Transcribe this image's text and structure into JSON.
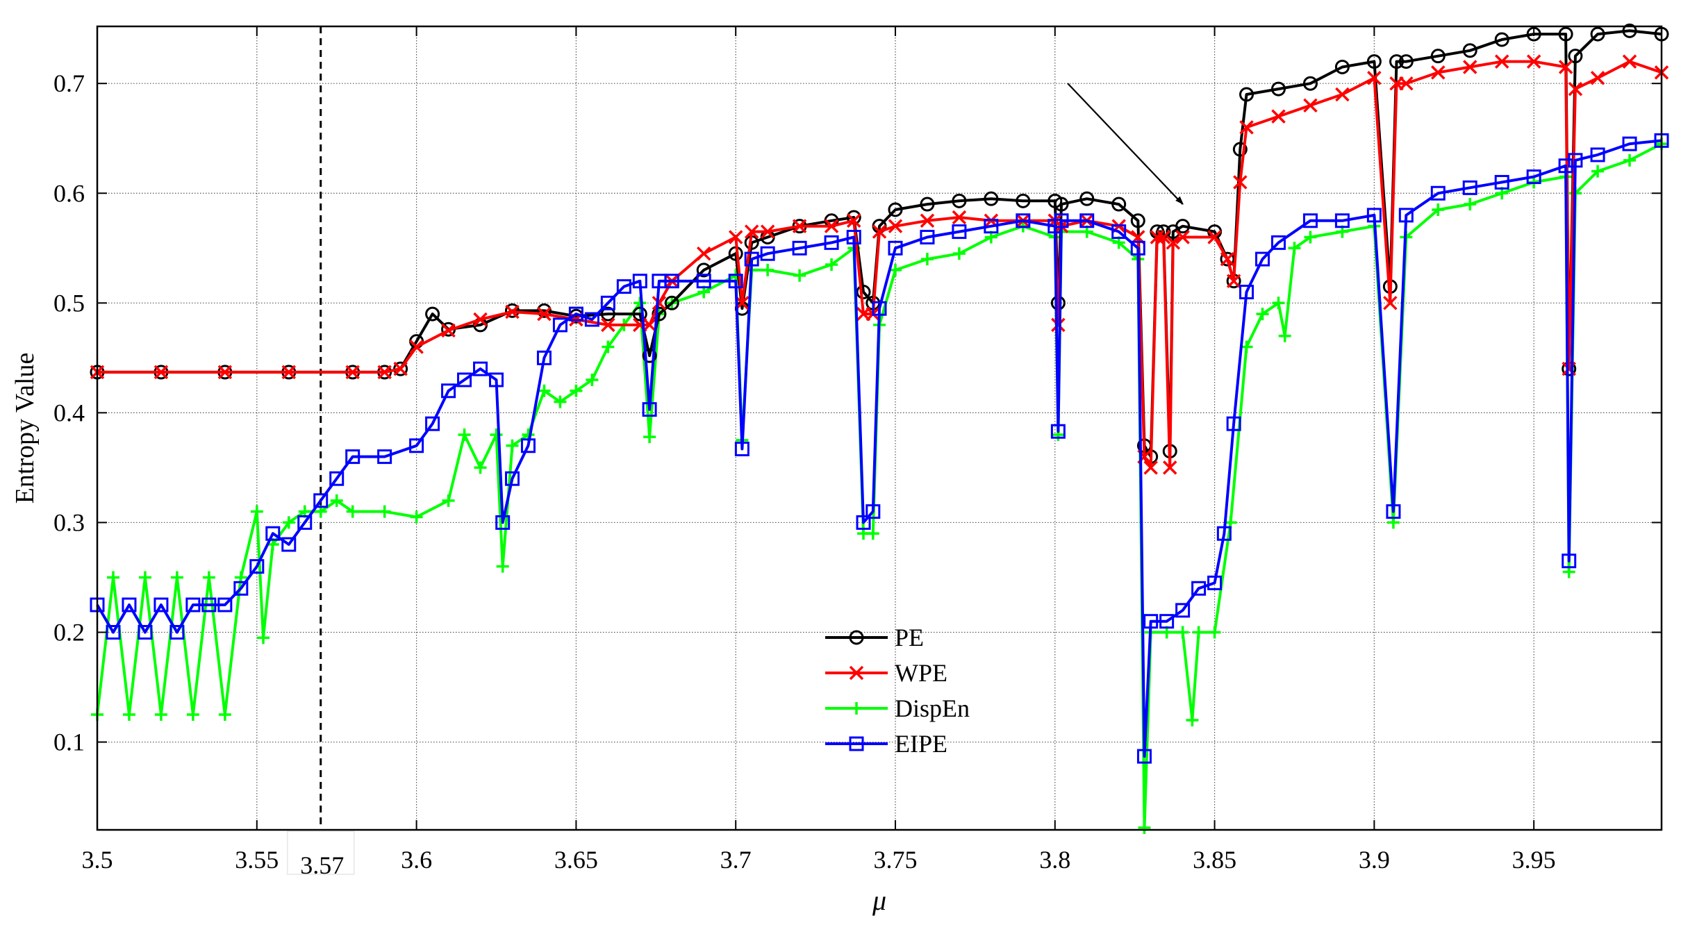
{
  "chart_data": {
    "type": "line",
    "xlabel": "μ",
    "ylabel": "Entropy Value",
    "xlim": [
      3.5,
      3.99
    ],
    "ylim": [
      0.02,
      0.752
    ],
    "x_ticks": [
      3.5,
      3.55,
      3.6,
      3.65,
      3.7,
      3.75,
      3.8,
      3.85,
      3.9,
      3.95
    ],
    "x_tick_labels": [
      "3.5",
      "3.55",
      "3.6",
      "3.65",
      "3.7",
      "3.75",
      "3.8",
      "3.85",
      "3.9",
      "3.95"
    ],
    "y_ticks": [
      0.1,
      0.2,
      0.3,
      0.4,
      0.5,
      0.6,
      0.7
    ],
    "y_tick_labels": [
      "0.1",
      "0.2",
      "0.3",
      "0.4",
      "0.5",
      "0.6",
      "0.7"
    ],
    "grid": true,
    "legend_position": "lower-center",
    "annotations": [
      {
        "type": "vline",
        "style": "dashed",
        "x": 3.57,
        "label": "3.57"
      },
      {
        "type": "arrow",
        "from": [
          3.804,
          0.7
        ],
        "to": [
          3.84,
          0.59
        ]
      }
    ],
    "series": [
      {
        "name": "PE",
        "color": "#000000",
        "marker": "circle",
        "x": [
          3.5,
          3.52,
          3.54,
          3.56,
          3.58,
          3.59,
          3.595,
          3.6,
          3.605,
          3.61,
          3.62,
          3.63,
          3.64,
          3.65,
          3.66,
          3.67,
          3.673,
          3.676,
          3.68,
          3.69,
          3.7,
          3.702,
          3.705,
          3.71,
          3.72,
          3.73,
          3.737,
          3.74,
          3.743,
          3.745,
          3.75,
          3.76,
          3.77,
          3.78,
          3.79,
          3.8,
          3.801,
          3.802,
          3.81,
          3.82,
          3.826,
          3.828,
          3.83,
          3.832,
          3.834,
          3.836,
          3.837,
          3.84,
          3.85,
          3.854,
          3.856,
          3.858,
          3.86,
          3.87,
          3.88,
          3.89,
          3.9,
          3.905,
          3.907,
          3.91,
          3.92,
          3.93,
          3.94,
          3.95,
          3.96,
          3.961,
          3.963,
          3.97,
          3.98,
          3.99
        ],
        "y": [
          0.437,
          0.437,
          0.437,
          0.437,
          0.437,
          0.437,
          0.44,
          0.465,
          0.49,
          0.476,
          0.48,
          0.493,
          0.493,
          0.488,
          0.49,
          0.49,
          0.452,
          0.49,
          0.5,
          0.53,
          0.545,
          0.495,
          0.555,
          0.56,
          0.57,
          0.575,
          0.578,
          0.51,
          0.5,
          0.57,
          0.585,
          0.59,
          0.593,
          0.595,
          0.593,
          0.593,
          0.5,
          0.59,
          0.595,
          0.59,
          0.575,
          0.37,
          0.36,
          0.565,
          0.565,
          0.365,
          0.565,
          0.57,
          0.565,
          0.54,
          0.52,
          0.64,
          0.69,
          0.695,
          0.7,
          0.715,
          0.72,
          0.515,
          0.72,
          0.72,
          0.725,
          0.73,
          0.74,
          0.745,
          0.745,
          0.44,
          0.725,
          0.745,
          0.748,
          0.745
        ]
      },
      {
        "name": "WPE",
        "color": "#ff0000",
        "marker": "x",
        "x": [
          3.5,
          3.52,
          3.54,
          3.56,
          3.58,
          3.59,
          3.595,
          3.6,
          3.61,
          3.62,
          3.63,
          3.64,
          3.65,
          3.66,
          3.67,
          3.673,
          3.676,
          3.68,
          3.69,
          3.7,
          3.702,
          3.705,
          3.71,
          3.72,
          3.73,
          3.737,
          3.74,
          3.743,
          3.745,
          3.75,
          3.76,
          3.77,
          3.78,
          3.79,
          3.8,
          3.801,
          3.802,
          3.81,
          3.82,
          3.826,
          3.828,
          3.83,
          3.832,
          3.834,
          3.836,
          3.837,
          3.84,
          3.85,
          3.854,
          3.856,
          3.858,
          3.86,
          3.87,
          3.88,
          3.89,
          3.9,
          3.905,
          3.907,
          3.91,
          3.92,
          3.93,
          3.94,
          3.95,
          3.96,
          3.961,
          3.963,
          3.97,
          3.98,
          3.99
        ],
        "y": [
          0.437,
          0.437,
          0.437,
          0.437,
          0.437,
          0.437,
          0.44,
          0.46,
          0.475,
          0.485,
          0.492,
          0.49,
          0.485,
          0.48,
          0.48,
          0.48,
          0.5,
          0.52,
          0.545,
          0.56,
          0.5,
          0.565,
          0.565,
          0.57,
          0.57,
          0.575,
          0.49,
          0.49,
          0.565,
          0.57,
          0.575,
          0.578,
          0.575,
          0.575,
          0.575,
          0.48,
          0.57,
          0.575,
          0.57,
          0.56,
          0.36,
          0.35,
          0.56,
          0.56,
          0.35,
          0.555,
          0.56,
          0.56,
          0.54,
          0.52,
          0.61,
          0.66,
          0.67,
          0.68,
          0.69,
          0.705,
          0.5,
          0.7,
          0.7,
          0.71,
          0.715,
          0.72,
          0.72,
          0.715,
          0.44,
          0.695,
          0.705,
          0.72,
          0.71
        ]
      },
      {
        "name": "DispEn",
        "color": "#00ff00",
        "marker": "plus",
        "x": [
          3.5,
          3.505,
          3.51,
          3.515,
          3.52,
          3.525,
          3.53,
          3.535,
          3.54,
          3.545,
          3.55,
          3.552,
          3.555,
          3.56,
          3.565,
          3.57,
          3.575,
          3.58,
          3.59,
          3.6,
          3.61,
          3.615,
          3.62,
          3.625,
          3.627,
          3.63,
          3.635,
          3.64,
          3.645,
          3.65,
          3.655,
          3.66,
          3.665,
          3.67,
          3.673,
          3.676,
          3.68,
          3.69,
          3.7,
          3.702,
          3.705,
          3.71,
          3.72,
          3.73,
          3.737,
          3.74,
          3.743,
          3.745,
          3.75,
          3.76,
          3.77,
          3.78,
          3.79,
          3.8,
          3.801,
          3.802,
          3.81,
          3.82,
          3.826,
          3.828,
          3.83,
          3.835,
          3.84,
          3.843,
          3.845,
          3.85,
          3.855,
          3.86,
          3.865,
          3.87,
          3.872,
          3.875,
          3.88,
          3.89,
          3.9,
          3.906,
          3.91,
          3.92,
          3.93,
          3.94,
          3.95,
          3.96,
          3.961,
          3.963,
          3.97,
          3.98,
          3.99
        ],
        "y": [
          0.125,
          0.25,
          0.125,
          0.25,
          0.125,
          0.25,
          0.125,
          0.25,
          0.125,
          0.25,
          0.31,
          0.195,
          0.28,
          0.3,
          0.31,
          0.31,
          0.32,
          0.31,
          0.31,
          0.305,
          0.32,
          0.38,
          0.35,
          0.38,
          0.26,
          0.37,
          0.38,
          0.42,
          0.41,
          0.42,
          0.43,
          0.46,
          0.48,
          0.5,
          0.378,
          0.49,
          0.5,
          0.51,
          0.525,
          0.375,
          0.53,
          0.53,
          0.525,
          0.535,
          0.55,
          0.29,
          0.29,
          0.48,
          0.53,
          0.54,
          0.545,
          0.56,
          0.57,
          0.56,
          0.38,
          0.565,
          0.565,
          0.555,
          0.54,
          0.022,
          0.2,
          0.2,
          0.2,
          0.12,
          0.2,
          0.2,
          0.3,
          0.46,
          0.49,
          0.5,
          0.47,
          0.55,
          0.56,
          0.565,
          0.57,
          0.3,
          0.56,
          0.585,
          0.59,
          0.6,
          0.61,
          0.615,
          0.255,
          0.6,
          0.62,
          0.63,
          0.645
        ]
      },
      {
        "name": "EIPE",
        "color": "#0000ff",
        "marker": "square",
        "x": [
          3.5,
          3.505,
          3.51,
          3.515,
          3.52,
          3.525,
          3.53,
          3.535,
          3.54,
          3.545,
          3.55,
          3.555,
          3.56,
          3.565,
          3.57,
          3.575,
          3.58,
          3.59,
          3.6,
          3.605,
          3.61,
          3.615,
          3.62,
          3.625,
          3.627,
          3.63,
          3.635,
          3.64,
          3.645,
          3.65,
          3.655,
          3.66,
          3.665,
          3.67,
          3.673,
          3.676,
          3.68,
          3.69,
          3.7,
          3.702,
          3.705,
          3.71,
          3.72,
          3.73,
          3.737,
          3.74,
          3.743,
          3.745,
          3.75,
          3.76,
          3.77,
          3.78,
          3.79,
          3.8,
          3.801,
          3.802,
          3.81,
          3.82,
          3.826,
          3.828,
          3.83,
          3.835,
          3.84,
          3.845,
          3.85,
          3.853,
          3.856,
          3.86,
          3.865,
          3.87,
          3.88,
          3.89,
          3.9,
          3.906,
          3.91,
          3.92,
          3.93,
          3.94,
          3.95,
          3.96,
          3.961,
          3.963,
          3.97,
          3.98,
          3.99
        ],
        "y": [
          0.225,
          0.2,
          0.225,
          0.2,
          0.225,
          0.2,
          0.225,
          0.225,
          0.225,
          0.24,
          0.26,
          0.29,
          0.28,
          0.3,
          0.32,
          0.34,
          0.36,
          0.36,
          0.37,
          0.39,
          0.42,
          0.43,
          0.44,
          0.43,
          0.3,
          0.34,
          0.37,
          0.45,
          0.48,
          0.49,
          0.485,
          0.5,
          0.515,
          0.52,
          0.403,
          0.52,
          0.52,
          0.52,
          0.52,
          0.367,
          0.54,
          0.545,
          0.55,
          0.555,
          0.56,
          0.3,
          0.31,
          0.495,
          0.55,
          0.56,
          0.565,
          0.57,
          0.575,
          0.57,
          0.383,
          0.575,
          0.575,
          0.565,
          0.55,
          0.087,
          0.21,
          0.21,
          0.22,
          0.24,
          0.245,
          0.29,
          0.39,
          0.51,
          0.54,
          0.555,
          0.575,
          0.575,
          0.58,
          0.31,
          0.58,
          0.6,
          0.605,
          0.61,
          0.615,
          0.625,
          0.265,
          0.63,
          0.635,
          0.645,
          0.648
        ]
      }
    ]
  }
}
